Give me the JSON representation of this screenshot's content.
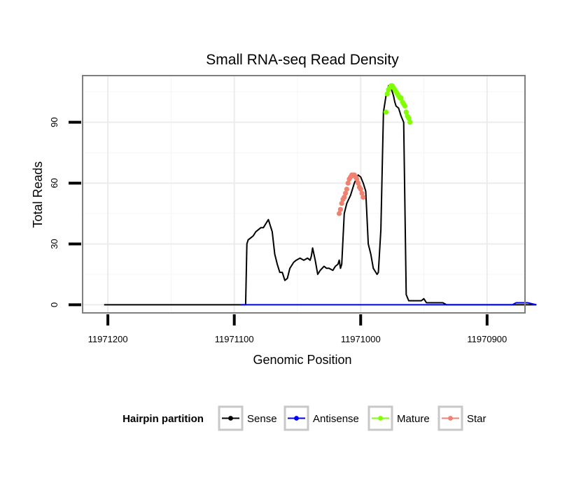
{
  "chart_data": {
    "type": "line",
    "title": "Small RNA-seq Read Density",
    "xlabel": "Genomic Position",
    "ylabel": "Total Reads",
    "x_reversed": true,
    "xlim": [
      11971220,
      11970870
    ],
    "ylim": [
      -4,
      113
    ],
    "x_ticks": [
      11971200,
      11971100,
      11971000,
      11970900
    ],
    "x_tick_labels": [
      "11971200",
      "11971100",
      "11971000",
      "11970900"
    ],
    "y_ticks": [
      0,
      30,
      60,
      90
    ],
    "y_tick_labels": [
      "0",
      "30",
      "60",
      "90"
    ],
    "grid": true,
    "legend": {
      "title": "Hairpin partition",
      "position": "bottom",
      "entries": [
        {
          "name": "Sense",
          "color": "#000000"
        },
        {
          "name": "Antisense",
          "color": "#0000ff"
        },
        {
          "name": "Mature",
          "color": "#7fff00"
        },
        {
          "name": "Star",
          "color": "#f08070"
        }
      ]
    },
    "series": [
      {
        "name": "Sense",
        "color": "#000000",
        "x": [
          11971203,
          11971091,
          11971090,
          11971089,
          11971087,
          11971085,
          11971083,
          11971081,
          11971079,
          11971077,
          11971075,
          11971073,
          11971070,
          11971068,
          11971066,
          11971064,
          11971062,
          11971060,
          11971058,
          11971056,
          11971053,
          11971051,
          11971048,
          11971045,
          11971042,
          11971040,
          11971039,
          11971038,
          11971036,
          11971034,
          11971032,
          11971029,
          11971027,
          11971025,
          11971022,
          11971020,
          11971018,
          11971017,
          11971016,
          11971015,
          11971013,
          11971011,
          11971008,
          11971005,
          11971002,
          11971000,
          11970998,
          11970996,
          11970994,
          11970992,
          11970990,
          11970988,
          11970987,
          11970986,
          11970984,
          11970982,
          11970980,
          11970978,
          11970976,
          11970975,
          11970974,
          11970973,
          11970972,
          11970970,
          11970968,
          11970966,
          11970964,
          11970962,
          11970960,
          11970958,
          11970956,
          11970954,
          11970952,
          11970950,
          11970948,
          11970947,
          11970946,
          11970945,
          11970944,
          11970942,
          11970940,
          11970938,
          11970935,
          11970932,
          11970928,
          11970925,
          11970922,
          11970920,
          11970918,
          11970900,
          11970880,
          11970861
        ],
        "y": [
          0,
          0,
          30,
          32,
          33,
          34,
          36,
          37,
          38,
          38,
          40,
          42,
          36,
          25,
          20,
          16,
          16,
          12,
          13,
          18,
          21,
          22,
          23,
          22,
          23,
          22,
          24,
          28,
          22,
          15,
          17,
          19,
          18,
          18,
          17,
          19,
          20,
          22,
          18,
          20,
          45,
          50,
          54,
          60,
          64,
          63,
          60,
          56,
          30,
          25,
          18,
          16,
          15,
          16,
          37,
          95,
          103,
          108,
          107,
          105,
          103,
          100,
          98,
          97,
          93,
          90,
          5,
          2,
          2,
          2,
          2,
          2,
          2,
          3,
          1,
          1,
          1,
          1,
          1,
          1,
          1,
          1,
          1,
          0,
          0,
          0,
          0,
          0,
          0,
          0,
          0,
          0
        ]
      },
      {
        "name": "Antisense",
        "color": "#0000ff",
        "x": [
          11971095,
          11970880,
          11970877,
          11970868,
          11970861
        ],
        "y": [
          0,
          0,
          1,
          1,
          0
        ]
      },
      {
        "name": "Mature",
        "color": "#7fff00",
        "x": [
          11970980,
          11970979,
          11970978,
          11970977,
          11970976,
          11970975,
          11970974,
          11970973,
          11970972,
          11970971,
          11970970,
          11970969,
          11970968,
          11970967,
          11970966,
          11970965,
          11970964,
          11970963,
          11970962,
          11970961
        ],
        "y": [
          95,
          104,
          106,
          107,
          108,
          108,
          107,
          106,
          105,
          104,
          103,
          102,
          102,
          100,
          99,
          98,
          95,
          93,
          92,
          90
        ]
      },
      {
        "name": "Star",
        "color": "#f08070",
        "x": [
          11971017,
          11971016,
          11971015,
          11971014,
          11971013,
          11971012,
          11971011,
          11971010,
          11971009,
          11971008,
          11971007,
          11971006,
          11971005,
          11971004,
          11971003,
          11971002,
          11971001,
          11971000,
          11970999,
          11970998
        ],
        "y": [
          45,
          47,
          50,
          52,
          53,
          55,
          57,
          60,
          62,
          63,
          64,
          64,
          64,
          63,
          62,
          60,
          58,
          57,
          55,
          53
        ]
      }
    ]
  }
}
